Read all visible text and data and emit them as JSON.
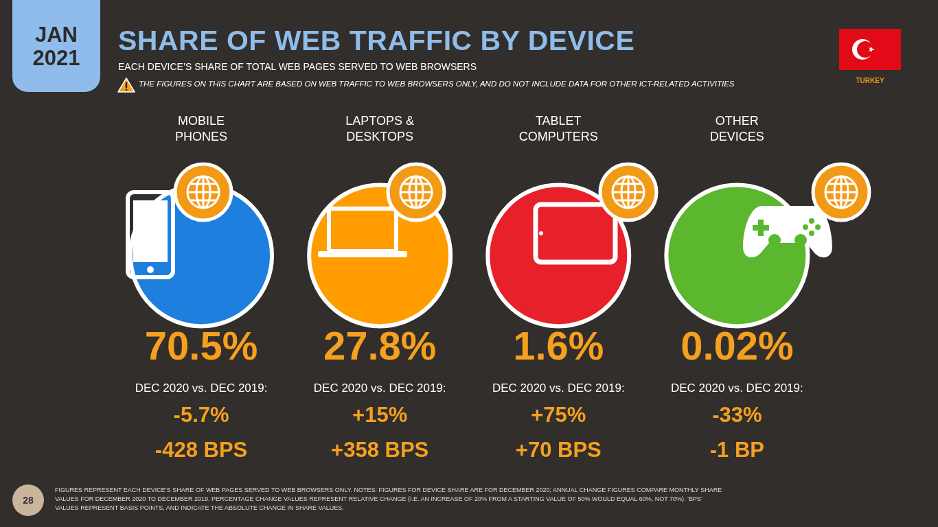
{
  "chart_data": {
    "type": "other",
    "title": "SHARE OF WEB TRAFFIC BY DEVICE",
    "subtitle": "EACH DEVICE’S SHARE OF TOTAL WEB PAGES SERVED TO WEB BROWSERS",
    "categories": [
      "MOBILE PHONES",
      "LAPTOPS & DESKTOPS",
      "TABLET COMPUTERS",
      "OTHER DEVICES"
    ],
    "series": [
      {
        "values": [
          70.5,
          27.8,
          1.6,
          0.02
        ],
        "colors": [
          "#1e7fdf",
          "#ff9d00",
          "#e8202a",
          "#5bb72d"
        ],
        "value_labels": [
          "70.5%",
          "27.8%",
          "1.6%",
          "0.02%"
        ]
      },
      {
        "name": "DEC 2020 vs. DEC 2019:",
        "values": [
          -5.7,
          15,
          75,
          -33
        ],
        "value_labels": [
          "-5.7%",
          "+15%",
          "+75%",
          "-33%"
        ]
      },
      {
        "values": [
          -428,
          358,
          70,
          -1
        ],
        "value_labels": [
          "-428 BPS",
          "+358 BPS",
          "+70 BPS",
          "-1 BP"
        ]
      }
    ],
    "annotations": [
      "JAN 2021",
      "THE FIGURES ON THIS CHART ARE BASED ON WEB TRAFFIC TO WEB BROWSERS ONLY, AND DO NOT INCLUDE DATA FOR OTHER ICT-RELATED ACTIVITIES",
      "TURKEY",
      "FIGURES REPRESENT EACH DEVICE’S SHARE OF WEB PAGES SERVED TO WEB BROWSERS ONLY. NOTES: FIGURES FOR DEVICE SHARE ARE FOR DECEMBER 2020; ANNUAL CHANGE FIGURES COMPARE MONTHLY SHARE VALUES FOR DECEMBER 2020 TO DECEMBER 2019. PERCENTAGE CHANGE VALUES REPRESENT RELATIVE CHANGE (I.E. AN INCREASE OF 20% FROM A STARTING VALUE OF 50% WOULD EQUAL 60%, NOT 70%). ‘BPS’ VALUES REPRESENT BASIS POINTS, AND INDICATE THE ABSOLUTE CHANGE IN SHARE VALUES.",
      "28"
    ]
  }
}
